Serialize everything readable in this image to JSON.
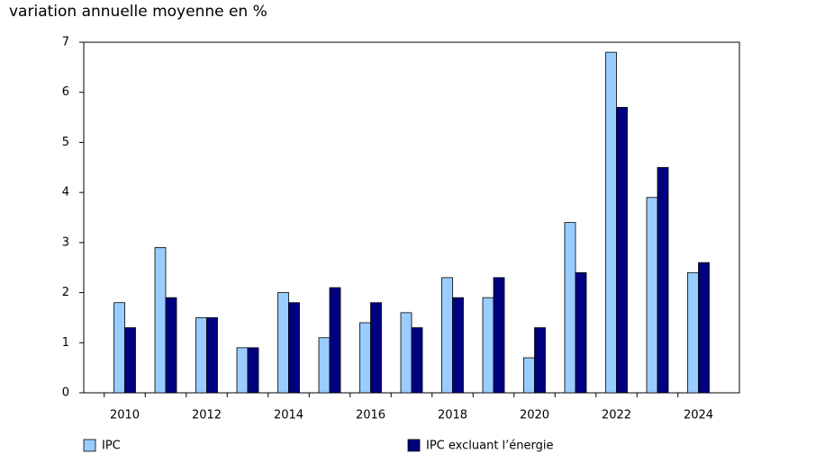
{
  "chart_data": {
    "type": "bar",
    "y_label": "variation annuelle moyenne en %",
    "categories": [
      "2010",
      null,
      "2012",
      null,
      "2014",
      null,
      "2016",
      null,
      "2018",
      null,
      "2020",
      null,
      "2022",
      null,
      "2024"
    ],
    "series": [
      {
        "name": "IPC",
        "color": "#99ccff",
        "values": [
          1.8,
          2.9,
          1.5,
          0.9,
          2.0,
          1.1,
          1.4,
          1.6,
          2.3,
          1.9,
          0.7,
          3.4,
          6.8,
          3.9,
          2.4
        ]
      },
      {
        "name": "IPC excluant l’énergie",
        "color": "#000080",
        "values": [
          1.3,
          1.9,
          1.5,
          0.9,
          1.8,
          2.1,
          1.8,
          1.3,
          1.9,
          2.3,
          1.3,
          2.4,
          5.7,
          4.5,
          2.6
        ]
      }
    ],
    "ylim": [
      0,
      7
    ],
    "yticks": [
      0,
      1,
      2,
      3,
      4,
      5,
      6,
      7
    ]
  }
}
